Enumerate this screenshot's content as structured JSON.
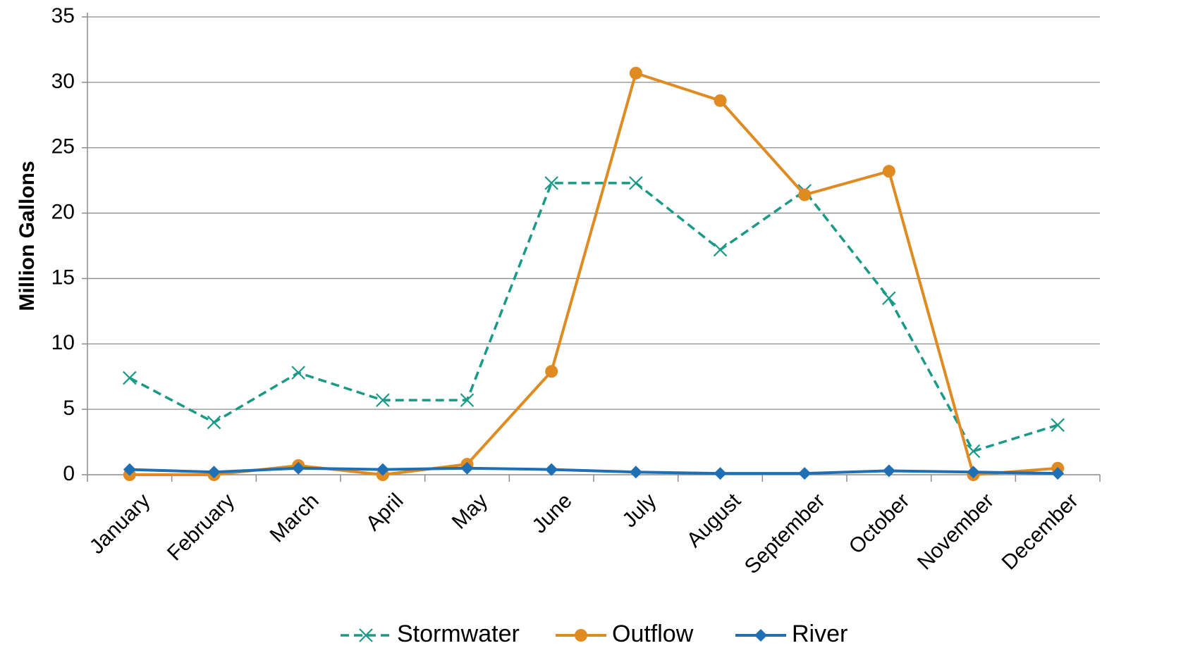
{
  "chart_data": {
    "type": "line",
    "title": "",
    "xlabel": "",
    "ylabel": "Million Gallons",
    "ylim": [
      0,
      35
    ],
    "yticks": [
      0,
      5,
      10,
      15,
      20,
      25,
      30,
      35
    ],
    "grid": true,
    "legend_position": "bottom",
    "categories": [
      "January",
      "February",
      "March",
      "April",
      "May",
      "June",
      "July",
      "August",
      "September",
      "October",
      "November",
      "December"
    ],
    "series": [
      {
        "name": "Stormwater",
        "color": "#1a9a86",
        "line_style": "dashed",
        "marker": "x",
        "values": [
          7.4,
          4.0,
          7.8,
          5.7,
          5.7,
          22.3,
          22.3,
          17.2,
          21.7,
          13.5,
          1.8,
          3.8
        ]
      },
      {
        "name": "Outflow",
        "color": "#e08a22",
        "line_style": "solid",
        "marker": "circle",
        "values": [
          0.0,
          0.0,
          0.7,
          0.0,
          0.8,
          7.9,
          30.7,
          28.6,
          21.4,
          23.2,
          0.0,
          0.5
        ]
      },
      {
        "name": "River",
        "color": "#1f6fb4",
        "line_style": "solid",
        "marker": "diamond",
        "values": [
          0.4,
          0.2,
          0.5,
          0.4,
          0.5,
          0.4,
          0.2,
          0.1,
          0.1,
          0.3,
          0.2,
          0.1
        ]
      }
    ]
  }
}
